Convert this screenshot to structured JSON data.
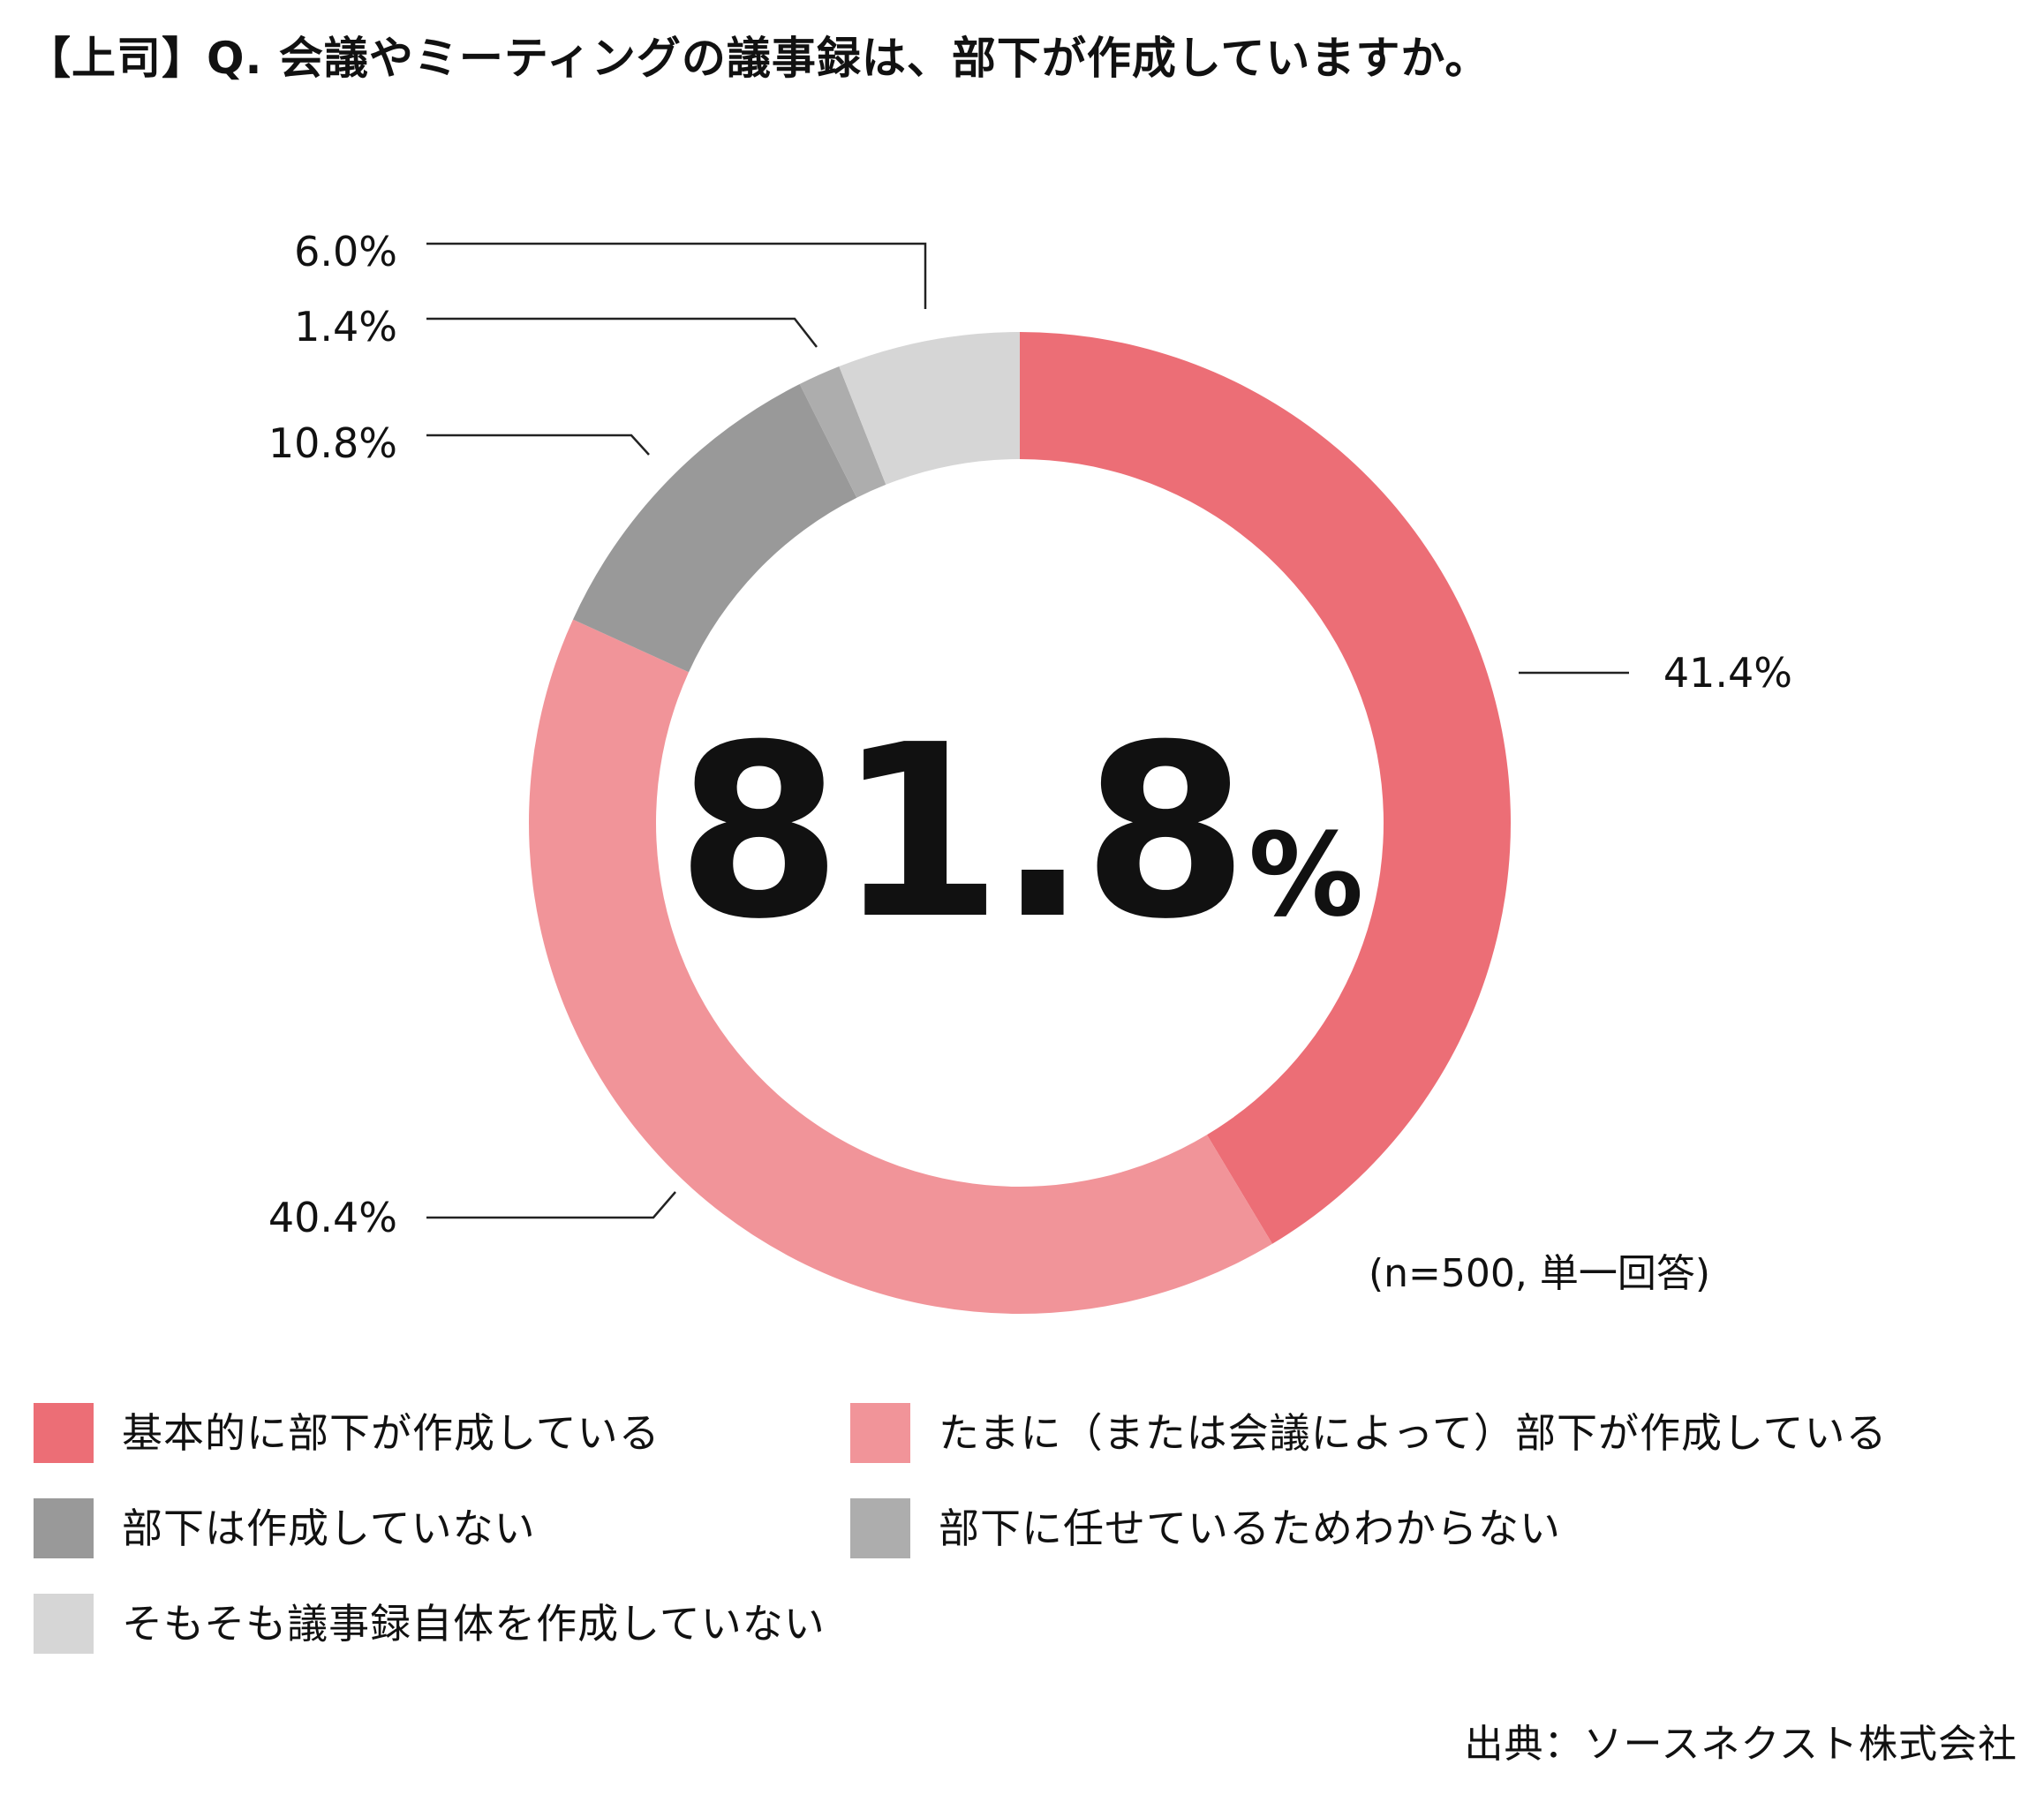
{
  "title": "【上司】Q. 会議やミーティングの議事録は、部下が作成していますか。",
  "source": "出典：ソースネクスト株式会社",
  "chart_data": {
    "type": "pie",
    "title": "【上司】Q. 会議やミーティングの議事録は、部下が作成していますか。",
    "center_label": {
      "value": "81.8",
      "unit": "%"
    },
    "note": "(n=500, 単一回答)",
    "unit": "%",
    "legend_position": "bottom",
    "start": "12 o'clock, clockwise",
    "categories": [
      "基本的に部下が作成している",
      "たまに（または会議によって）部下が作成している",
      "部下は作成していない",
      "部下に任せているためわからない",
      "そもそも議事録自体を作成していない"
    ],
    "values": [
      41.4,
      40.4,
      10.8,
      1.4,
      6.0
    ],
    "value_labels": [
      "41.4%",
      "40.4%",
      "10.8%",
      "1.4%",
      "6.0%"
    ],
    "colors": [
      "#EC6E76",
      "#F19499",
      "#999999",
      "#ADADAD",
      "#D6D6D6"
    ]
  }
}
